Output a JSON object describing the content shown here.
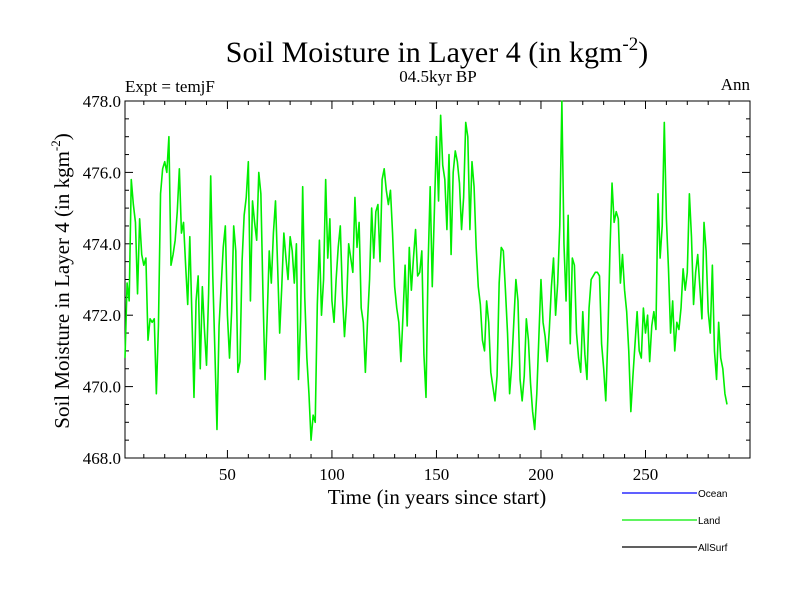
{
  "chart_data": {
    "type": "line",
    "title": "Soil Moisture in Layer 4 (in kgm",
    "title_sup": "-2",
    "title_end": ")",
    "subtitle": "04.5kyr BP",
    "left_label": "Expt = temjF",
    "right_label": "Ann",
    "xlabel": "Time (in years since start)",
    "ylabel": "Soil Moisture in Layer 4 (in kgm",
    "ylabel_sup": "-2",
    "ylabel_end": ")",
    "xlim": [
      1,
      300
    ],
    "ylim": [
      468.0,
      478.0
    ],
    "x_ticks": [
      50,
      100,
      150,
      200,
      250
    ],
    "x_tick_labels": [
      "50",
      "100",
      "150",
      "200",
      "250"
    ],
    "y_ticks": [
      468,
      470,
      472,
      474,
      476,
      478
    ],
    "y_tick_labels": [
      "468.0",
      "470.0",
      "472.0",
      "474.0",
      "476.0",
      "478.0"
    ],
    "legend": [
      {
        "name": "Ocean",
        "color": "#0000ff"
      },
      {
        "name": "Land",
        "color": "#00ee00"
      },
      {
        "name": "AllSurf",
        "color": "#000000"
      }
    ],
    "series": [
      {
        "name": "Land",
        "color": "#00ee00",
        "x_start": 1,
        "values": [
          470.8,
          472.9,
          472.4,
          475.8,
          475.1,
          474.6,
          472.6,
          474.7,
          473.7,
          473.4,
          473.6,
          471.3,
          471.9,
          471.8,
          471.9,
          469.8,
          471.7,
          475.4,
          476.1,
          476.3,
          476.0,
          477.0,
          473.4,
          473.7,
          474.1,
          474.9,
          476.1,
          474.3,
          474.6,
          473.4,
          472.3,
          474.2,
          472.0,
          469.7,
          472.4,
          473.1,
          470.5,
          472.8,
          471.6,
          470.6,
          472.6,
          475.9,
          473.1,
          471.0,
          468.8,
          471.7,
          472.8,
          473.9,
          474.5,
          472.0,
          470.8,
          472.1,
          474.5,
          473.8,
          470.4,
          470.7,
          473.5,
          474.8,
          475.3,
          476.3,
          472.4,
          475.2,
          474.6,
          474.1,
          476.0,
          475.4,
          472.6,
          470.2,
          471.9,
          473.8,
          472.9,
          474.3,
          475.2,
          473.4,
          471.5,
          472.8,
          474.3,
          473.6,
          473.0,
          474.2,
          473.8,
          472.9,
          474.0,
          470.2,
          471.9,
          475.6,
          472.5,
          470.8,
          469.8,
          468.5,
          469.2,
          469.0,
          472.3,
          474.1,
          472.0,
          473.0,
          475.8,
          473.6,
          474.7,
          472.4,
          471.8,
          473.0,
          473.9,
          474.5,
          472.6,
          471.4,
          472.3,
          474.0,
          473.6,
          473.2,
          475.3,
          473.9,
          474.6,
          472.2,
          471.8,
          470.4,
          471.8,
          473.0,
          475.0,
          473.6,
          474.9,
          475.1,
          473.5,
          475.8,
          476.1,
          475.5,
          475.1,
          475.5,
          474.3,
          472.8,
          472.2,
          471.8,
          470.7,
          472.0,
          473.4,
          471.7,
          473.9,
          472.7,
          473.6,
          474.4,
          473.1,
          473.2,
          473.8,
          470.9,
          469.7,
          473.4,
          475.6,
          472.8,
          474.9,
          477.0,
          475.2,
          477.6,
          476.2,
          475.8,
          474.4,
          476.5,
          473.7,
          476.0,
          476.6,
          476.3,
          475.7,
          474.4,
          475.3,
          477.4,
          477.0,
          474.4,
          476.3,
          475.6,
          473.9,
          472.8,
          472.3,
          471.3,
          471.0,
          472.4,
          471.8,
          470.4,
          470.0,
          469.6,
          470.3,
          472.9,
          473.9,
          473.8,
          472.7,
          471.5,
          469.8,
          470.6,
          471.8,
          473.0,
          472.4,
          470.2,
          469.6,
          470.3,
          471.9,
          471.3,
          470.1,
          469.3,
          468.8,
          469.8,
          471.4,
          473.0,
          471.8,
          471.4,
          470.7,
          471.6,
          472.8,
          473.6,
          472.0,
          472.9,
          474.5,
          478.0,
          474.0,
          472.4,
          474.8,
          471.2,
          473.6,
          473.4,
          471.5,
          470.8,
          470.4,
          472.1,
          470.9,
          470.2,
          472.2,
          473.0,
          473.1,
          473.2,
          473.2,
          473.1,
          471.2,
          470.5,
          469.6,
          471.4,
          473.8,
          475.7,
          474.6,
          474.9,
          474.7,
          472.9,
          473.7,
          472.7,
          472.1,
          471.0,
          469.3,
          470.3,
          471.2,
          472.1,
          471.0,
          470.8,
          472.2,
          471.5,
          472.0,
          470.7,
          471.7,
          472.1,
          471.6,
          475.4,
          473.6,
          474.5,
          477.4,
          474.7,
          473.3,
          471.5,
          472.4,
          471.0,
          471.8,
          471.6,
          472.2,
          473.3,
          472.7,
          473.2,
          475.4,
          474.2,
          472.3,
          473.2,
          473.7,
          472.8,
          471.9,
          474.6,
          473.8,
          472.1,
          471.5,
          473.4,
          471.0,
          470.2,
          471.8,
          470.8,
          470.5,
          469.8,
          469.5
        ]
      }
    ]
  }
}
